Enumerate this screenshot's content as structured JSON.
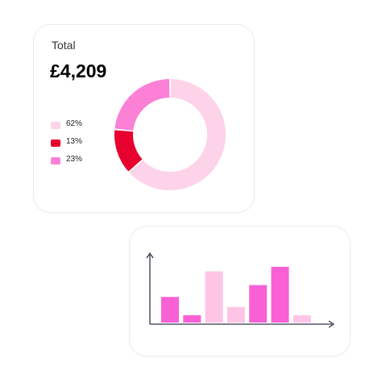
{
  "summary": {
    "label": "Total",
    "value": "£4,209"
  },
  "chart_data": [
    {
      "type": "pie",
      "title": "",
      "categories": [
        "62%",
        "13%",
        "23%"
      ],
      "values": [
        62,
        13,
        23
      ],
      "colors": [
        "#fdd3ea",
        "#e8002e",
        "#fb80d6"
      ],
      "legend_position": "left"
    },
    {
      "type": "bar",
      "title": "",
      "categories": [
        "",
        "",
        "",
        "",
        "",
        "",
        ""
      ],
      "values": [
        28,
        8,
        56,
        17,
        41,
        61,
        8
      ],
      "colors": [
        "#f960d6",
        "#f960d6",
        "#fdc4e5",
        "#fdc4e5",
        "#f960d6",
        "#f960d6",
        "#fdc4e5"
      ],
      "xlabel": "",
      "ylabel": "",
      "ylim": [
        0,
        75
      ],
      "grid": false
    }
  ]
}
